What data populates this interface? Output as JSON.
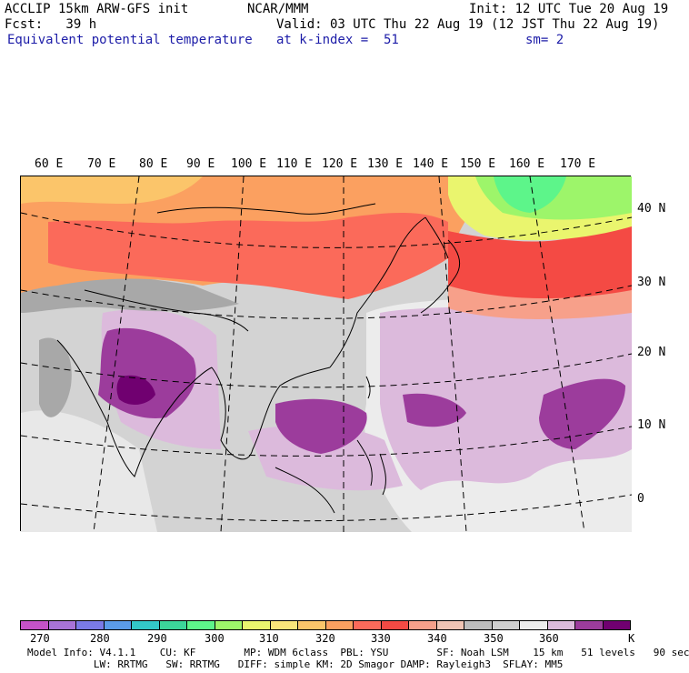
{
  "header": {
    "left_line1": "ACCLIP 15km ARW-GFS init",
    "left_line2": "Fcst:   39 h",
    "center_line1": "NCAR/MMM",
    "init": "Init: 12 UTC Tue 20 Aug 19",
    "valid": "Valid: 03 UTC Thu 22 Aug 19 (12 JST Thu 22 Aug 19)",
    "field_name": "Equivalent potential temperature",
    "level": "at k-index =  51",
    "smoothing": "sm= 2"
  },
  "map": {
    "longitude_labels": [
      "60 E",
      "70 E",
      "80 E",
      "90 E",
      "100 E",
      "110 E",
      "120 E",
      "130 E",
      "140 E",
      "150 E",
      "160 E",
      "170 E"
    ],
    "latitude_labels": [
      "40 N",
      "30 N",
      "20 N",
      "10 N",
      "0"
    ]
  },
  "colorbar": {
    "unit": "K",
    "tick_labels": [
      "270",
      "280",
      "290",
      "300",
      "310",
      "320",
      "330",
      "340",
      "350",
      "360"
    ],
    "colors": [
      "#c552c8",
      "#a873d8",
      "#7a7ae6",
      "#5b9be8",
      "#33c8c8",
      "#3cd69a",
      "#5df58a",
      "#9df56a",
      "#eaf56e",
      "#fae57a",
      "#fbc56a",
      "#fba060",
      "#fb6a5a",
      "#f44a44",
      "#f7a08a",
      "#f0c4b4",
      "#bcbcbc",
      "#cfcfcf",
      "#ececec",
      "#dcbadc",
      "#9c3c9c",
      "#700070"
    ]
  },
  "footer": {
    "line1": "Model Info: V4.1.1    CU: KF        MP: WDM 6class  PBL: YSU        SF: Noah LSM    15 km   51 levels   90 sec",
    "line2": "           LW: RRTMG   SW: RRTMG   DIFF: simple KM: 2D Smagor DAMP: Rayleigh3  SFLAY: MM5"
  }
}
